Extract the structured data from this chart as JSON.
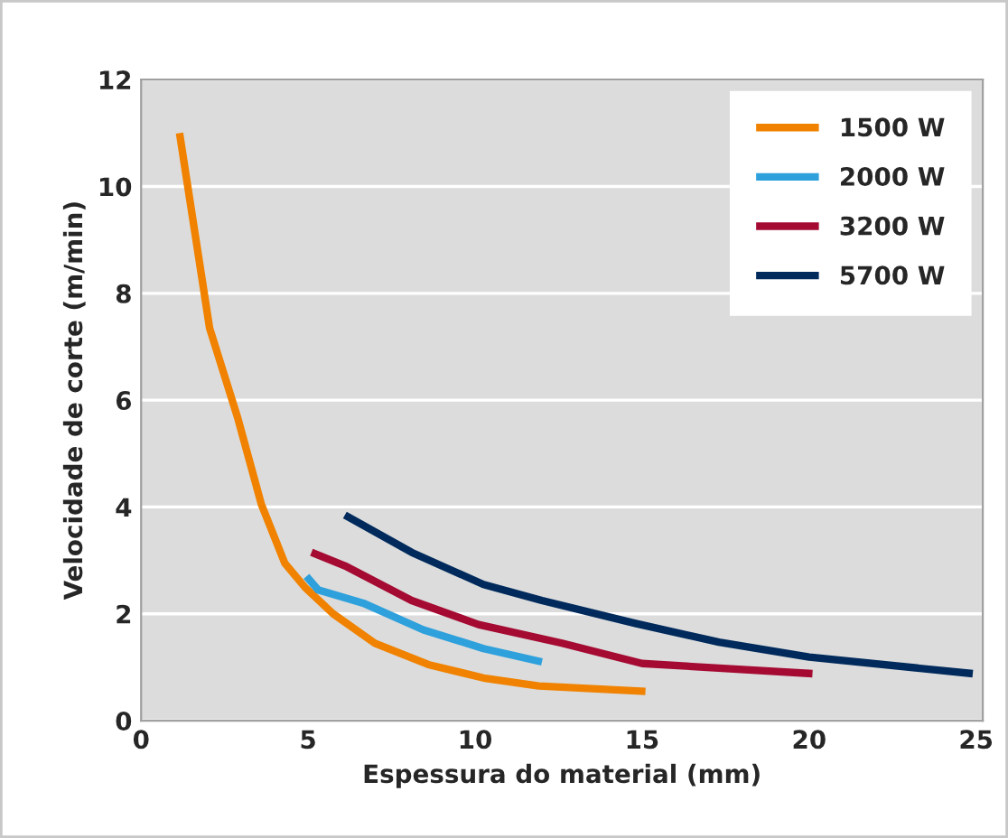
{
  "chart_data": {
    "type": "line",
    "xlabel": "Espessura do material (mm)",
    "ylabel": "Velocidade de corte (m/min)",
    "xlim": [
      0,
      25.2
    ],
    "xticks": [
      0,
      5,
      10,
      15,
      20,
      25
    ],
    "ylim": [
      0,
      12
    ],
    "yticks": [
      0,
      2,
      4,
      6,
      8,
      10,
      12
    ],
    "grid": "y",
    "legend": "top right",
    "marker": "none",
    "line_style": "solid",
    "series": [
      {
        "name": "1500 W",
        "color": "#f08200",
        "x": [
          1.15,
          2.05,
          2.9,
          3.6,
          4.3,
          4.9,
          5.75,
          7.0,
          8.6,
          10.25,
          11.9,
          15.1
        ],
        "values": [
          11.0,
          7.35,
          5.65,
          4.05,
          2.95,
          2.5,
          2.0,
          1.45,
          1.05,
          0.8,
          0.65,
          0.55
        ]
      },
      {
        "name": "2000 W",
        "color": "#2ea0dc",
        "x": [
          4.95,
          5.3,
          6.65,
          8.45,
          10.25,
          12.0
        ],
        "values": [
          2.7,
          2.45,
          2.2,
          1.7,
          1.35,
          1.1
        ]
      },
      {
        "name": "3200 W",
        "color": "#a50a32",
        "x": [
          5.1,
          6.1,
          8.1,
          10.1,
          12.6,
          15.0,
          20.1
        ],
        "values": [
          3.15,
          2.9,
          2.25,
          1.8,
          1.45,
          1.07,
          0.88
        ]
      },
      {
        "name": "5700 W",
        "color": "#002a5c",
        "x": [
          6.1,
          8.1,
          10.25,
          12.0,
          14.8,
          17.3,
          20.0,
          24.9
        ],
        "values": [
          3.85,
          3.15,
          2.55,
          2.25,
          1.82,
          1.47,
          1.19,
          0.88
        ]
      }
    ]
  }
}
